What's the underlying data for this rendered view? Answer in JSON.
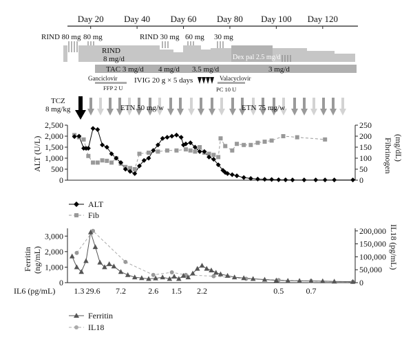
{
  "timeline": {
    "days": [
      "Day 20",
      "Day 40",
      "Day 60",
      "Day 80",
      "Day 100",
      "Day 120"
    ],
    "rind_doses": [
      "RIND 80 mg",
      "80 mg",
      "RIND 30 mg",
      "60 mg",
      "30 mg"
    ],
    "rind_label": "RIND",
    "rind_dose": "8 mg/d",
    "dex_label": "Dex pal 2.5 mg/d",
    "tac_labels": [
      "TAC 3 mg/d",
      "4 mg/d",
      "3.5 mg/d",
      "3 mg/d"
    ],
    "ganciclovir": "Ganciclovir",
    "ffp": "FFP 2 U",
    "ivig": "IVIG 20 g × 5 days",
    "valacyclovir": "Valacyclovir",
    "pc": "PC 10 U",
    "tcz_name": "TCZ",
    "tcz_dose": "8 mg/kg",
    "etn1": "ETN 50 mg/w",
    "etn2": "ETN 75 mg/w"
  },
  "chart_data": [
    {
      "type": "line",
      "ylabel": "ALT (U/L)",
      "y2label_line1": "Fibrinogen",
      "y2label_line2": "(mg/dL)",
      "x_day_range": [
        10,
        134
      ],
      "ylim": [
        0,
        2500
      ],
      "y2lim": [
        0,
        250
      ],
      "yticks": [
        "0",
        "500",
        "1,000",
        "1,500",
        "2,000",
        "2,500"
      ],
      "y2ticks": [
        "0",
        "50",
        "100",
        "150",
        "200",
        "250"
      ],
      "series": [
        {
          "name": "ALT",
          "axis": "left",
          "color": "#000000",
          "marker": "diamond",
          "x": [
            13,
            15,
            17,
            18,
            19,
            21,
            23,
            25,
            27,
            29,
            31,
            33,
            35,
            37,
            39,
            41,
            43,
            45,
            47,
            49,
            51,
            53,
            55,
            57,
            59,
            60,
            61,
            63,
            65,
            67,
            69,
            71,
            73,
            75,
            77,
            78,
            79,
            81,
            83,
            86,
            89,
            92,
            95,
            98,
            101,
            104,
            107,
            112,
            117,
            121,
            125,
            133
          ],
          "y": [
            1980,
            2000,
            1450,
            1450,
            1450,
            2350,
            2300,
            1600,
            1500,
            1200,
            1000,
            800,
            500,
            400,
            300,
            650,
            900,
            1000,
            1350,
            1600,
            1900,
            1950,
            2000,
            2050,
            1950,
            1600,
            1650,
            1700,
            1500,
            1300,
            1300,
            1050,
            950,
            700,
            450,
            350,
            300,
            250,
            200,
            120,
            80,
            50,
            40,
            30,
            20,
            15,
            10,
            10,
            10,
            10,
            10,
            10
          ]
        },
        {
          "name": "Fib",
          "axis": "right",
          "color": "#999999",
          "marker": "square",
          "x": [
            13,
            15,
            17,
            19,
            21,
            23,
            25,
            27,
            29,
            31,
            33,
            35,
            37,
            39,
            41,
            45,
            49,
            53,
            57,
            61,
            63,
            65,
            67,
            69,
            71,
            73,
            75,
            76,
            78,
            81,
            83,
            86,
            89,
            92,
            95,
            98,
            103,
            109,
            121
          ],
          "y": [
            205,
            195,
            185,
            110,
            80,
            80,
            90,
            88,
            80,
            100,
            75,
            60,
            55,
            50,
            120,
            125,
            130,
            135,
            135,
            140,
            135,
            130,
            150,
            125,
            120,
            115,
            105,
            190,
            155,
            135,
            165,
            160,
            160,
            170,
            175,
            180,
            200,
            195,
            185
          ]
        }
      ]
    },
    {
      "type": "line",
      "ylabel": "Ferritin",
      "ylabel_unit": "(ng/mL)",
      "y2label": "IL18 (pg/mL)",
      "x_day_range": [
        10,
        134
      ],
      "ylim": [
        0,
        3500
      ],
      "y2lim": [
        0,
        210000
      ],
      "yticks": [
        "0",
        "1,000",
        "2,000",
        "3,000"
      ],
      "y2ticks": [
        "0",
        "50,000",
        "100,000",
        "150,000",
        "200,000"
      ],
      "series": [
        {
          "name": "Ferritin",
          "axis": "left",
          "color": "#555555",
          "marker": "triangle",
          "x": [
            12,
            14,
            16,
            18,
            20,
            22,
            24,
            26,
            28,
            30,
            33,
            36,
            39,
            42,
            45,
            48,
            51,
            54,
            56,
            58,
            60,
            62,
            64,
            66,
            68,
            70,
            72,
            74,
            76,
            79,
            82,
            86,
            90,
            95,
            100,
            105,
            110,
            115,
            120,
            125,
            133
          ],
          "y": [
            1700,
            1000,
            700,
            1400,
            3250,
            2300,
            1300,
            1000,
            1200,
            1050,
            700,
            500,
            350,
            300,
            250,
            280,
            350,
            250,
            400,
            250,
            450,
            350,
            600,
            900,
            1100,
            900,
            800,
            650,
            550,
            450,
            350,
            300,
            250,
            200,
            150,
            130,
            120,
            110,
            100,
            80,
            60
          ]
        },
        {
          "name": "IL18",
          "axis": "right",
          "color": "#999999",
          "marker": "circle",
          "x": [
            14,
            21,
            35,
            47,
            55,
            61,
            73,
            87,
            101,
            115,
            133
          ],
          "y": [
            115000,
            200000,
            80000,
            30000,
            40000,
            30000,
            25000,
            15000,
            10000,
            6000,
            3000
          ]
        }
      ]
    }
  ],
  "il6": {
    "label": "IL6 (pg/mL)",
    "values": [
      {
        "day": 15,
        "text": "1.3"
      },
      {
        "day": 21,
        "text": "29.6"
      },
      {
        "day": 33,
        "text": "7.2"
      },
      {
        "day": 47,
        "text": "2.6"
      },
      {
        "day": 57,
        "text": "1.5"
      },
      {
        "day": 68,
        "text": "2.2"
      },
      {
        "day": 101,
        "text": "0.5"
      },
      {
        "day": 115,
        "text": "0.7"
      }
    ]
  },
  "legend1": [
    "ALT",
    "Fib"
  ],
  "legend2": [
    "Ferritin",
    "IL18"
  ]
}
